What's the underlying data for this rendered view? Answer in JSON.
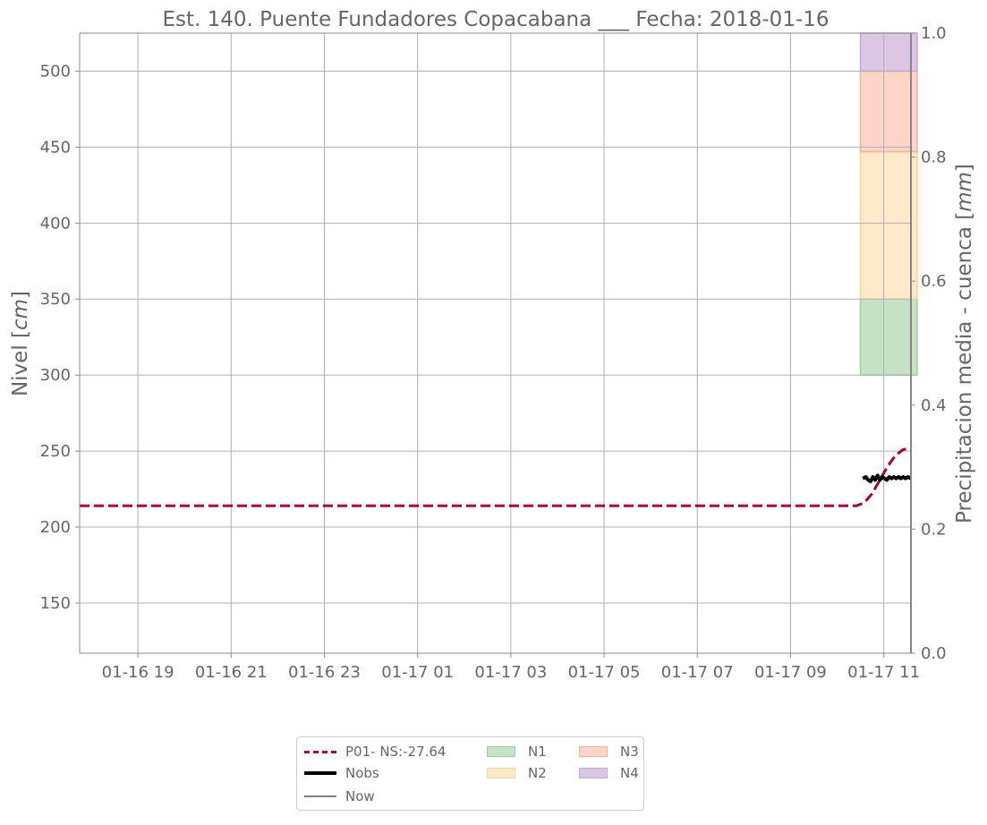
{
  "chart_data": {
    "type": "line",
    "title": "Est. 140. Puente Fundadores Copacabana ___ Fecha: 2018-01-16",
    "ylabel": "Nivel  [cm]",
    "ylabel_unit": "cm",
    "y2label": "Precipitacion media - cuenca [mm]",
    "y2label_unit": "mm",
    "x_range": [
      "2018-01-16 17:45",
      "2018-01-17 11:35"
    ],
    "ylim": [
      117,
      525
    ],
    "y2lim": [
      0.0,
      1.0
    ],
    "grid": true,
    "xticks": [
      {
        "t": "2018-01-16 19:00",
        "label": "01-16 19"
      },
      {
        "t": "2018-01-16 21:00",
        "label": "01-16 21"
      },
      {
        "t": "2018-01-16 23:00",
        "label": "01-16 23"
      },
      {
        "t": "2018-01-17 01:00",
        "label": "01-17 01"
      },
      {
        "t": "2018-01-17 03:00",
        "label": "01-17 03"
      },
      {
        "t": "2018-01-17 05:00",
        "label": "01-17 05"
      },
      {
        "t": "2018-01-17 07:00",
        "label": "01-17 07"
      },
      {
        "t": "2018-01-17 09:00",
        "label": "01-17 09"
      },
      {
        "t": "2018-01-17 11:00",
        "label": "01-17 11"
      }
    ],
    "yticks": [
      150,
      200,
      250,
      300,
      350,
      400,
      450,
      500
    ],
    "y2ticks": [
      "0.0",
      "0.2",
      "0.4",
      "0.6",
      "0.8",
      "1.0"
    ],
    "series": [
      {
        "name": "P01- NS:-27.64",
        "style": "dashed",
        "color": "#a5003a",
        "points": [
          [
            "2018-01-16 17:45",
            214
          ],
          [
            "2018-01-17 10:00",
            214
          ],
          [
            "2018-01-17 10:25",
            214
          ],
          [
            "2018-01-17 10:35",
            216
          ],
          [
            "2018-01-17 10:45",
            222
          ],
          [
            "2018-01-17 10:55",
            231
          ],
          [
            "2018-01-17 11:05",
            240
          ],
          [
            "2018-01-17 11:15",
            247
          ],
          [
            "2018-01-17 11:25",
            251
          ],
          [
            "2018-01-17 11:35",
            252
          ]
        ]
      },
      {
        "name": "Nobs",
        "style": "solid",
        "color": "#000000",
        "points": [
          [
            "2018-01-17 10:33",
            232
          ],
          [
            "2018-01-17 10:37",
            233
          ],
          [
            "2018-01-17 10:40",
            231
          ],
          [
            "2018-01-17 10:43",
            230
          ],
          [
            "2018-01-17 10:46",
            233
          ],
          [
            "2018-01-17 10:49",
            231
          ],
          [
            "2018-01-17 10:52",
            234
          ],
          [
            "2018-01-17 10:55",
            231
          ],
          [
            "2018-01-17 10:58",
            233
          ],
          [
            "2018-01-17 11:01",
            232
          ],
          [
            "2018-01-17 11:04",
            231
          ],
          [
            "2018-01-17 11:07",
            233
          ],
          [
            "2018-01-17 11:10",
            232
          ],
          [
            "2018-01-17 11:13",
            233
          ],
          [
            "2018-01-17 11:16",
            232
          ],
          [
            "2018-01-17 11:19",
            233
          ],
          [
            "2018-01-17 11:22",
            232
          ],
          [
            "2018-01-17 11:25",
            233
          ],
          [
            "2018-01-17 11:28",
            232
          ],
          [
            "2018-01-17 11:31",
            233
          ],
          [
            "2018-01-17 11:35",
            232
          ]
        ]
      },
      {
        "name": "Now",
        "style": "solid",
        "color": "#808080",
        "t": "2018-01-17 11:35"
      }
    ],
    "levels": [
      {
        "name": "N1",
        "from": 300,
        "to": 350,
        "fill": "#c7e3c7",
        "stroke": "#9fcf9f"
      },
      {
        "name": "N2",
        "from": 350,
        "to": 447,
        "fill": "#feeaca",
        "stroke": "#f9d68f"
      },
      {
        "name": "N3",
        "from": 447,
        "to": 500,
        "fill": "#fdd5c8",
        "stroke": "#f6b09a"
      },
      {
        "name": "N4",
        "from": 500,
        "to": 525,
        "fill": "#dbc7e3",
        "stroke": "#c5a6d6"
      }
    ],
    "level_band_t": [
      "2018-01-17 10:30",
      "2018-01-17 11:43"
    ],
    "legend": {
      "placement": "below",
      "entries": [
        "P01- NS:-27.64",
        "Nobs",
        "Now",
        "N1",
        "N2",
        "N3",
        "N4"
      ]
    },
    "colors": {
      "grid": "#b0b0b0",
      "spine": "#8c8c8c",
      "text": "#666666"
    }
  }
}
